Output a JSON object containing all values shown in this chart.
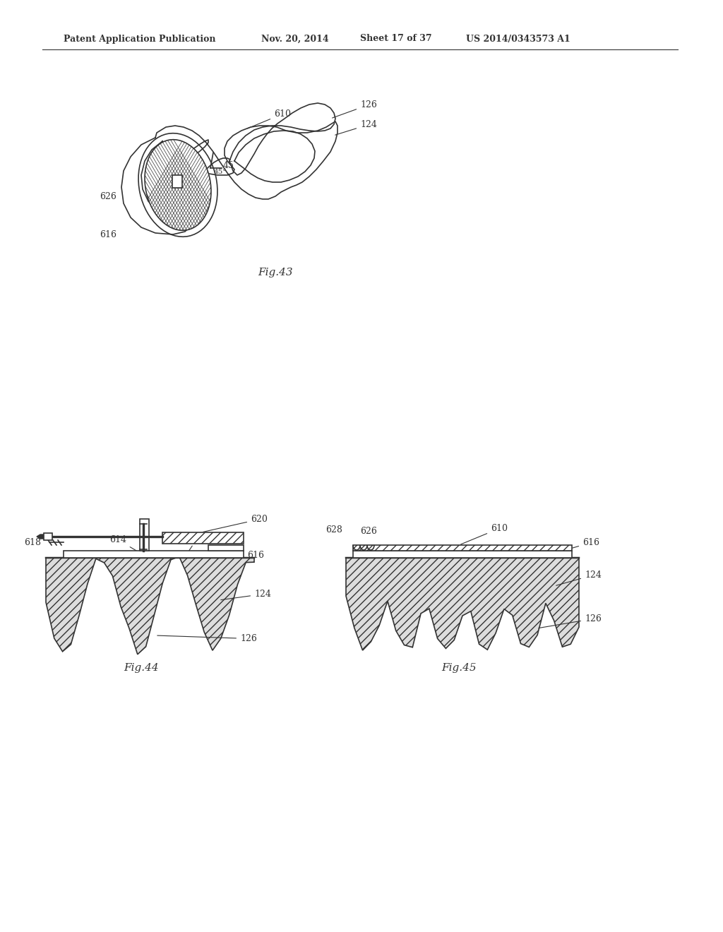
{
  "bg_color": "#ffffff",
  "header_text": "Patent Application Publication",
  "header_date": "Nov. 20, 2014",
  "header_sheet": "Sheet 17 of 37",
  "header_patent": "US 2014/0343573 A1",
  "fig43_label": "Fig.43",
  "fig44_label": "Fig.44",
  "fig45_label": "Fig.45",
  "line_color": "#333333",
  "label_fontsize": 9,
  "fig_label_fontsize": 11
}
